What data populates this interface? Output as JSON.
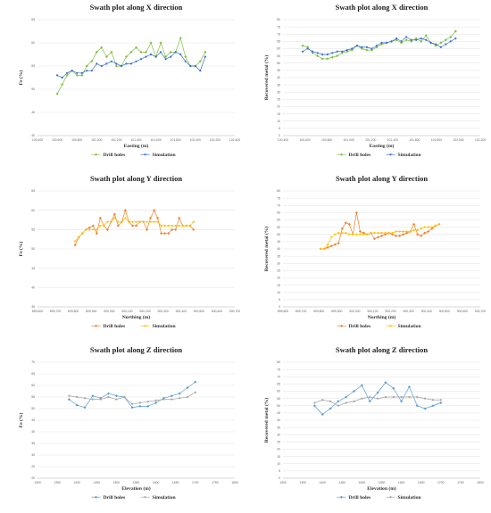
{
  "chart_data": [
    {
      "type": "line",
      "title": "Swath plot along X direction",
      "xlabel": "Easting (m)",
      "ylabel": "Fe (%)",
      "xlim": [
        100400,
        102400
      ],
      "ylim": [
        40,
        65
      ],
      "x_ticks": [
        "100,400",
        "100,600",
        "100,800",
        "101,000",
        "101,200",
        "101,400",
        "101,600",
        "101,800",
        "102,000",
        "102,200",
        "102,400"
      ],
      "y_ticks": [
        "40",
        "45",
        "50",
        "55",
        "60",
        "65"
      ],
      "series": [
        {
          "name": "Drill holes",
          "color": "#7fbf3f",
          "marker": "diamond",
          "x": [
            100600,
            100650,
            100700,
            100750,
            100800,
            100850,
            100900,
            100950,
            101000,
            101050,
            101100,
            101150,
            101200,
            101250,
            101300,
            101350,
            101400,
            101450,
            101500,
            101550,
            101600,
            101650,
            101700,
            101750,
            101800,
            101850,
            101900,
            101950,
            102000,
            102050,
            102100
          ],
          "y": [
            49,
            51,
            53,
            54,
            53,
            53,
            55,
            56,
            58,
            59,
            57,
            58,
            55,
            55,
            57,
            58,
            59,
            58,
            58,
            60,
            57,
            60,
            57,
            58,
            58,
            61,
            57,
            55,
            55,
            56,
            58
          ]
        },
        {
          "name": "Simulation",
          "color": "#3b6fd1",
          "marker": "circle",
          "x": [
            100600,
            100650,
            100700,
            100750,
            100800,
            100850,
            100900,
            100950,
            101000,
            101050,
            101100,
            101150,
            101200,
            101250,
            101300,
            101350,
            101400,
            101450,
            101500,
            101550,
            101600,
            101650,
            101700,
            101750,
            101800,
            101850,
            101900,
            101950,
            102000,
            102050,
            102100
          ],
          "y": [
            53,
            52.5,
            53.5,
            54,
            53.5,
            53.5,
            54,
            54,
            55.5,
            55,
            55.5,
            56,
            55.5,
            55,
            55.5,
            55.5,
            56,
            56.5,
            57,
            57.5,
            57,
            58,
            56.5,
            57,
            58,
            57.5,
            56,
            55,
            55,
            54,
            57
          ]
        }
      ]
    },
    {
      "type": "line",
      "title": "Swath plot along X direction",
      "xlabel": "Easting (m)",
      "ylabel": "Recovered metal (%)",
      "xlim": [
        100400,
        102400
      ],
      "ylim": [
        0,
        80
      ],
      "x_ticks": [
        "100,400",
        "100,600",
        "100,800",
        "101,000",
        "101,200",
        "101,400",
        "101,600",
        "101,800",
        "102,000",
        "102,200"
      ],
      "y_ticks": [
        "0",
        "5",
        "10",
        "15",
        "20",
        "25",
        "30",
        "35",
        "40",
        "45",
        "50",
        "55",
        "60",
        "65",
        "70",
        "75",
        "80"
      ],
      "series": [
        {
          "name": "Drill holes",
          "color": "#7fbf3f",
          "marker": "diamond",
          "x": [
            100600,
            100650,
            100700,
            100750,
            100800,
            100850,
            100900,
            100950,
            101000,
            101050,
            101100,
            101150,
            101200,
            101250,
            101300,
            101350,
            101400,
            101450,
            101500,
            101550,
            101600,
            101650,
            101700,
            101750,
            101800,
            101850,
            101900,
            101950,
            102000,
            102050,
            102100,
            102150
          ],
          "y": [
            62,
            61,
            57,
            55,
            53,
            53,
            54,
            55,
            57,
            58,
            59,
            62,
            60,
            59,
            59,
            61,
            63,
            64,
            65,
            66,
            64,
            66,
            65,
            67,
            65,
            69,
            64,
            62,
            64,
            66,
            68,
            72
          ]
        },
        {
          "name": "Simulation",
          "color": "#3b6fd1",
          "marker": "circle",
          "x": [
            100600,
            100650,
            100700,
            100750,
            100800,
            100850,
            100900,
            100950,
            101000,
            101050,
            101100,
            101150,
            101200,
            101250,
            101300,
            101350,
            101400,
            101450,
            101500,
            101550,
            101600,
            101650,
            101700,
            101750,
            101800,
            101850,
            101900,
            101950,
            102000,
            102050,
            102100,
            102150
          ],
          "y": [
            58,
            60,
            58,
            57,
            56,
            56,
            57,
            58,
            58,
            59,
            60,
            62,
            61,
            61,
            60,
            62,
            64,
            64,
            65,
            67,
            65,
            68,
            66,
            66,
            67,
            66,
            64,
            63,
            61,
            63,
            65,
            67
          ]
        }
      ]
    },
    {
      "type": "line",
      "title": "Swath plot along Y direction",
      "xlabel": "Northing (m)",
      "ylabel": "Fe (%)",
      "xlim": [
        899600,
        900700
      ],
      "ylim": [
        35,
        65
      ],
      "x_ticks": [
        "899,600",
        "899,700",
        "899,800",
        "899,900",
        "900,000",
        "900,100",
        "900,200",
        "900,300",
        "900,400",
        "900,500",
        "900,600",
        "900,700"
      ],
      "y_ticks": [
        "35",
        "40",
        "45",
        "50",
        "55",
        "60",
        "65"
      ],
      "series": [
        {
          "name": "Drill holes",
          "color": "#f07f2a",
          "marker": "diamond",
          "x": [
            899810,
            899830,
            899850,
            899870,
            899890,
            899910,
            899930,
            899950,
            899970,
            899990,
            900010,
            900030,
            900050,
            900070,
            900090,
            900110,
            900130,
            900150,
            900170,
            900190,
            900210,
            900230,
            900250,
            900270,
            900290,
            900310,
            900330,
            900350,
            900370,
            900390,
            900410,
            900430,
            900450,
            900470
          ],
          "y": [
            51,
            53,
            54,
            55,
            55.5,
            56,
            54,
            58,
            56,
            55,
            57,
            59,
            56,
            57,
            60,
            57,
            56,
            56,
            57,
            57,
            55,
            58,
            60,
            58,
            54,
            54,
            54,
            55,
            55,
            58,
            56,
            56,
            56,
            55
          ]
        },
        {
          "name": "Simulation",
          "color": "#ffc000",
          "marker": "circle",
          "x": [
            899810,
            899830,
            899850,
            899870,
            899890,
            899910,
            899930,
            899950,
            899970,
            899990,
            900010,
            900030,
            900050,
            900070,
            900090,
            900110,
            900130,
            900150,
            900170,
            900190,
            900210,
            900230,
            900250,
            900270,
            900290,
            900310,
            900330,
            900350,
            900370,
            900390,
            900410,
            900430,
            900450,
            900470
          ],
          "y": [
            52,
            53,
            54,
            55,
            55,
            55,
            55,
            56,
            56,
            57,
            57,
            58,
            57,
            57,
            58,
            57,
            57,
            57,
            57,
            57,
            57,
            57,
            57,
            57,
            56,
            56,
            56,
            56,
            56,
            56,
            56,
            56,
            56,
            57
          ]
        }
      ]
    },
    {
      "type": "line",
      "title": "Swath plot along Y direction",
      "xlabel": "Northing (m)",
      "ylabel": "Recovered metal (%)",
      "xlim": [
        899600,
        900700
      ],
      "ylim": [
        0,
        80
      ],
      "x_ticks": [
        "899,600",
        "899,700",
        "899,800",
        "899,900",
        "900,000",
        "900,100",
        "900,200",
        "900,300",
        "900,400",
        "900,500",
        "900,600",
        "900,700"
      ],
      "y_ticks": [
        "0",
        "5",
        "10",
        "15",
        "20",
        "25",
        "30",
        "35",
        "40",
        "45",
        "50",
        "55",
        "60",
        "65",
        "70",
        "75",
        "80"
      ],
      "series": [
        {
          "name": "Drill holes",
          "color": "#f07f2a",
          "marker": "diamond",
          "x": [
            899810,
            899830,
            899850,
            899870,
            899890,
            899910,
            899930,
            899950,
            899970,
            899990,
            900010,
            900030,
            900050,
            900070,
            900090,
            900110,
            900130,
            900150,
            900170,
            900190,
            900210,
            900230,
            900250,
            900270,
            900290,
            900310,
            900330,
            900350,
            900370,
            900390,
            900410,
            900430,
            900450,
            900470
          ],
          "y": [
            40,
            40,
            41,
            42,
            43,
            44,
            54,
            58,
            57,
            50,
            65,
            52,
            51,
            50,
            51,
            47,
            48,
            49,
            50,
            51,
            50,
            49,
            49,
            50,
            51,
            52,
            57,
            50,
            49,
            51,
            52,
            54,
            56,
            57
          ]
        },
        {
          "name": "Simulation",
          "color": "#ffc000",
          "marker": "circle",
          "x": [
            899810,
            899830,
            899850,
            899870,
            899890,
            899910,
            899930,
            899950,
            899970,
            899990,
            900010,
            900030,
            900050,
            900070,
            900090,
            900110,
            900130,
            900150,
            900170,
            900190,
            900210,
            900230,
            900250,
            900270,
            900290,
            900310,
            900330,
            900350,
            900370,
            900390,
            900410,
            900430,
            900450,
            900470
          ],
          "y": [
            40,
            40,
            43,
            48,
            50,
            51,
            51,
            51,
            50,
            50,
            50,
            50,
            50,
            50,
            51,
            51,
            51,
            51,
            51,
            51,
            51,
            52,
            52,
            52,
            52,
            52,
            53,
            53,
            54,
            55,
            55,
            55,
            56,
            57
          ]
        }
      ]
    },
    {
      "type": "line",
      "title": "Swath plot along Z direction",
      "xlabel": "Elevation (m)",
      "ylabel": "Fe (%)",
      "xlim": [
        1300,
        1800
      ],
      "ylim": [
        20,
        70
      ],
      "x_ticks": [
        "1300",
        "1350",
        "1400",
        "1450",
        "1500",
        "1550",
        "1600",
        "1650",
        "1700",
        "1750",
        "1800"
      ],
      "y_ticks": [
        "20",
        "25",
        "30",
        "35",
        "40",
        "45",
        "50",
        "55",
        "60",
        "65",
        "70"
      ],
      "series": [
        {
          "name": "Drill holes",
          "color": "#5b9bd5",
          "marker": "diamond",
          "x": [
            1380,
            1400,
            1420,
            1440,
            1460,
            1480,
            1500,
            1520,
            1540,
            1560,
            1580,
            1600,
            1620,
            1640,
            1660,
            1680,
            1700
          ],
          "y": [
            54,
            51.5,
            50.5,
            55.5,
            54.5,
            56.5,
            55.5,
            55,
            50.5,
            51,
            51,
            52.5,
            54.5,
            55.5,
            56.5,
            59,
            61.5
          ]
        },
        {
          "name": "Simulation",
          "color": "#a5a5a5",
          "marker": "circle",
          "x": [
            1380,
            1400,
            1420,
            1440,
            1460,
            1480,
            1500,
            1520,
            1540,
            1560,
            1580,
            1600,
            1620,
            1640,
            1660,
            1680,
            1700
          ],
          "y": [
            55.5,
            55,
            54.5,
            54,
            54,
            55,
            54,
            55,
            52,
            52.5,
            53,
            53.5,
            54,
            54,
            54.5,
            55,
            57
          ]
        }
      ]
    },
    {
      "type": "line",
      "title": "Swath plot along Z direction",
      "xlabel": "Elevation (m)",
      "ylabel": "Recovered metal (%)",
      "xlim": [
        1300,
        1800
      ],
      "ylim": [
        0,
        80
      ],
      "x_ticks": [
        "1300",
        "1350",
        "1400",
        "1450",
        "1500",
        "1550",
        "1600",
        "1650",
        "1700",
        "1750",
        "1800"
      ],
      "y_ticks": [
        "0",
        "5",
        "10",
        "15",
        "20",
        "25",
        "30",
        "35",
        "40",
        "45",
        "50",
        "55",
        "60",
        "65",
        "70",
        "75",
        "80"
      ],
      "series": [
        {
          "name": "Drill holes",
          "color": "#5b9bd5",
          "marker": "diamond",
          "x": [
            1380,
            1400,
            1420,
            1440,
            1460,
            1480,
            1500,
            1520,
            1540,
            1560,
            1580,
            1600,
            1620,
            1640,
            1660,
            1680,
            1700
          ],
          "y": [
            50,
            44,
            48,
            53,
            56,
            60,
            64,
            53,
            59,
            66,
            62,
            53,
            63,
            50,
            48,
            50,
            52
          ]
        },
        {
          "name": "Simulation",
          "color": "#a5a5a5",
          "marker": "circle",
          "x": [
            1380,
            1400,
            1420,
            1440,
            1460,
            1480,
            1500,
            1520,
            1540,
            1560,
            1580,
            1600,
            1620,
            1640,
            1660,
            1680,
            1700
          ],
          "y": [
            52,
            54,
            53,
            50,
            52,
            53,
            55,
            56,
            55,
            56,
            56,
            56,
            56,
            56,
            55,
            54,
            54
          ]
        }
      ]
    }
  ]
}
